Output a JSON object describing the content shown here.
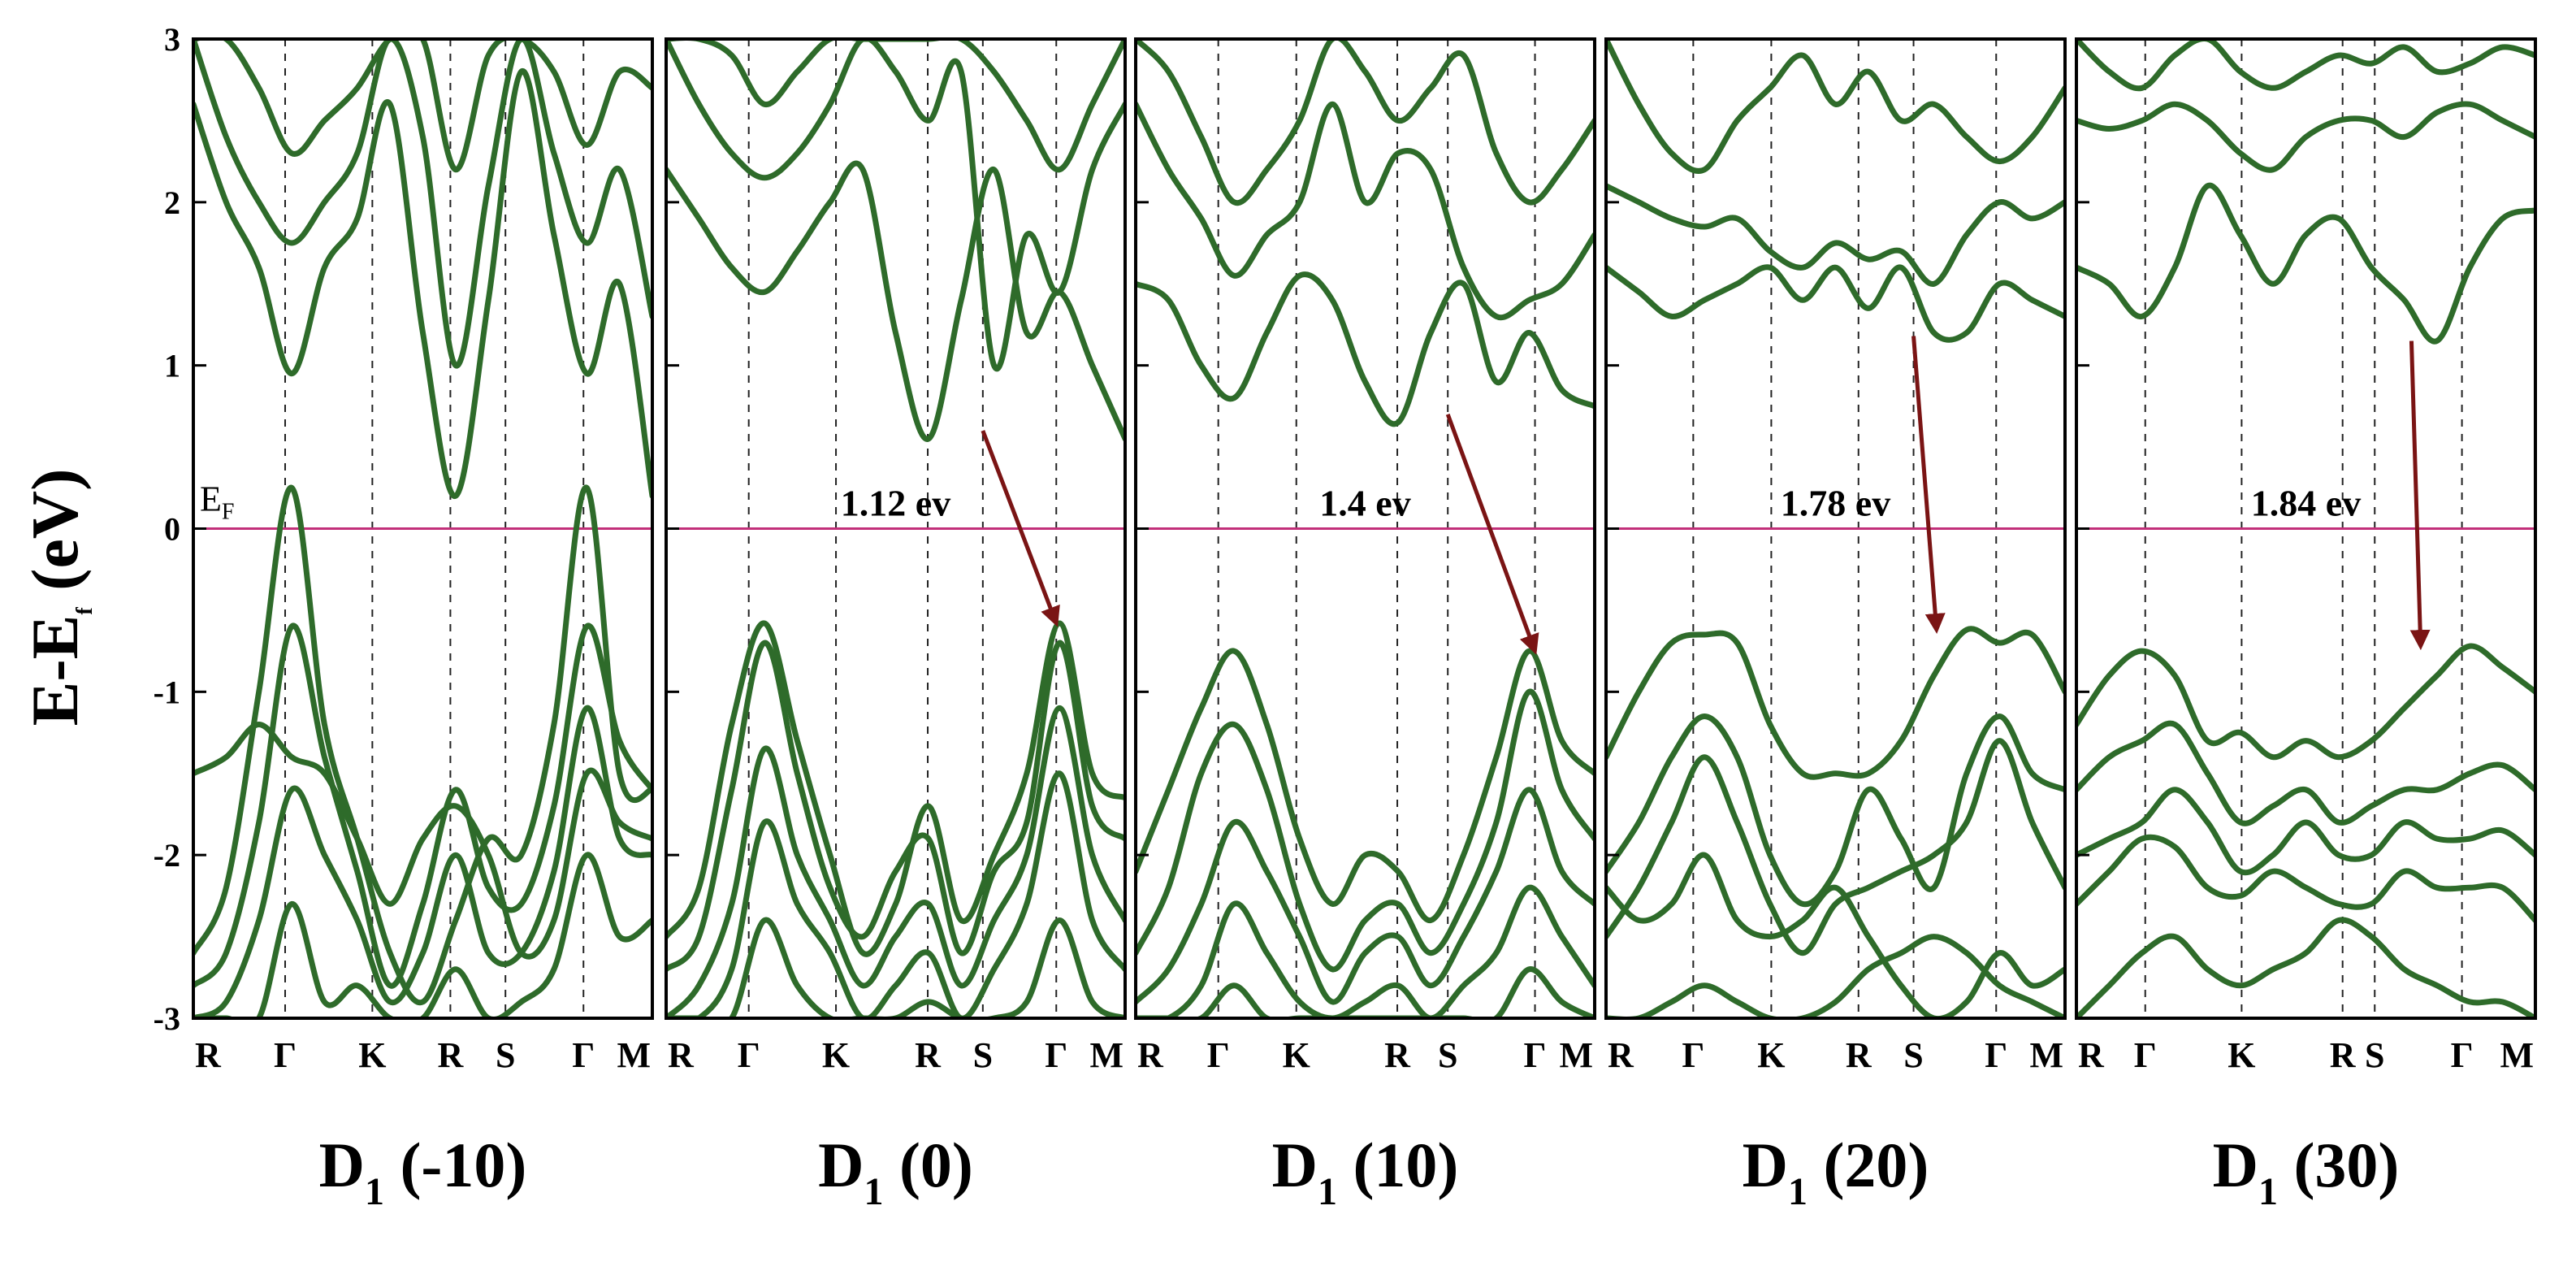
{
  "figure": {
    "ylabel_main": "E-E",
    "ylabel_sub": "f",
    "ylabel_unit": " (eV)",
    "fermi_label_main": "E",
    "fermi_label_sub": "F",
    "colors": {
      "band": "#2e6b2a",
      "fermi": "#c2307a",
      "arrow": "#7a1414",
      "kpath": "#222222",
      "frame": "#000000"
    }
  },
  "chart_data": {
    "type": "line",
    "ylim": [
      -3,
      3
    ],
    "yticks": [
      -3,
      -2,
      -1,
      0,
      1,
      2,
      3
    ],
    "panels": [
      {
        "title_main": "D",
        "title_sub": "1",
        "title_rest": " (-10)",
        "klabels": [
          "R",
          "Γ",
          "K",
          "R",
          "S",
          "Γ",
          "M"
        ],
        "kpos": [
          0,
          0.2,
          0.39,
          0.56,
          0.68,
          0.85,
          1.0
        ],
        "gap_label": "",
        "arrow": null,
        "bands": [
          [
            -2.6,
            -2.2,
            -1.0,
            0.25,
            -1.2,
            -1.9,
            -2.6,
            -2.9,
            -2.4,
            -1.9,
            -2.0,
            -1.2,
            0.25,
            -1.5,
            -1.6
          ],
          [
            -2.8,
            -2.6,
            -1.8,
            -0.6,
            -1.4,
            -2.1,
            -2.8,
            -2.3,
            -1.6,
            -2.2,
            -2.3,
            -1.7,
            -0.6,
            -1.3,
            -1.6
          ],
          [
            -3.0,
            -2.9,
            -2.4,
            -1.6,
            -2.0,
            -2.4,
            -2.9,
            -2.6,
            -2.0,
            -2.6,
            -2.6,
            -2.1,
            -1.1,
            -1.9,
            -2.0
          ],
          [
            -3.0,
            -3.0,
            -3.0,
            -2.3,
            -2.9,
            -2.8,
            -3.0,
            -3.0,
            -2.7,
            -3.0,
            -2.9,
            -2.7,
            -2.0,
            -2.5,
            -2.4
          ],
          [
            -1.5,
            -1.4,
            -1.2,
            -1.4,
            -1.5,
            -1.9,
            -2.3,
            -1.9,
            -1.7,
            -2.0,
            -2.6,
            -2.4,
            -1.5,
            -1.8,
            -1.9
          ],
          [
            2.6,
            2.0,
            1.6,
            0.95,
            1.6,
            1.9,
            2.6,
            1.2,
            0.2,
            1.4,
            2.8,
            1.8,
            0.95,
            1.5,
            0.2
          ],
          [
            3.0,
            2.4,
            2.0,
            1.75,
            2.0,
            2.3,
            3.0,
            2.4,
            1.0,
            2.1,
            3.0,
            2.3,
            1.75,
            2.2,
            1.3
          ],
          [
            3.0,
            3.0,
            2.7,
            2.3,
            2.5,
            2.7,
            3.0,
            3.0,
            2.2,
            2.9,
            3.0,
            2.8,
            2.35,
            2.8,
            2.7
          ]
        ]
      },
      {
        "title_main": "D",
        "title_sub": "1",
        "title_rest": " (0)",
        "klabels": [
          "R",
          "Γ",
          "K",
          "R",
          "S",
          "Γ",
          "M"
        ],
        "kpos": [
          0,
          0.18,
          0.37,
          0.57,
          0.69,
          0.85,
          1.0
        ],
        "gap_label": "1.12 ev",
        "arrow": {
          "from": [
            0.69,
            0.6
          ],
          "to": [
            0.85,
            -0.58
          ]
        },
        "bands": [
          [
            -2.5,
            -2.2,
            -1.2,
            -0.58,
            -1.3,
            -2.0,
            -2.6,
            -2.3,
            -1.7,
            -2.4,
            -2.0,
            -1.5,
            -0.58,
            -1.5,
            -1.65
          ],
          [
            -2.7,
            -2.5,
            -1.6,
            -0.7,
            -1.5,
            -2.2,
            -2.5,
            -2.1,
            -1.9,
            -2.6,
            -2.1,
            -1.8,
            -0.7,
            -1.7,
            -1.9
          ],
          [
            -3.0,
            -2.8,
            -2.3,
            -1.35,
            -2.0,
            -2.4,
            -2.8,
            -2.5,
            -2.3,
            -2.8,
            -2.4,
            -2.0,
            -1.1,
            -2.0,
            -2.4
          ],
          [
            -3.0,
            -3.0,
            -2.7,
            -1.8,
            -2.3,
            -2.6,
            -3.0,
            -2.8,
            -2.6,
            -3.0,
            -2.7,
            -2.3,
            -1.5,
            -2.4,
            -2.7
          ],
          [
            -3.0,
            -3.0,
            -3.0,
            -2.4,
            -2.8,
            -3.0,
            -3.0,
            -3.0,
            -2.9,
            -3.0,
            -3.0,
            -2.9,
            -2.4,
            -2.9,
            -3.0
          ],
          [
            2.2,
            1.9,
            1.6,
            1.45,
            1.7,
            2.0,
            2.2,
            1.2,
            0.55,
            1.4,
            2.2,
            1.2,
            1.45,
            1.0,
            0.55
          ],
          [
            3.0,
            2.6,
            2.3,
            2.15,
            2.3,
            2.6,
            3.0,
            2.8,
            2.5,
            2.8,
            1.0,
            1.8,
            1.45,
            2.2,
            2.6
          ],
          [
            3.0,
            3.0,
            2.9,
            2.6,
            2.8,
            3.0,
            3.0,
            3.0,
            3.0,
            3.0,
            2.8,
            2.5,
            2.2,
            2.6,
            3.0
          ]
        ]
      },
      {
        "title_main": "D",
        "title_sub": "1",
        "title_rest": " (10)",
        "klabels": [
          "R",
          "Γ",
          "K",
          "R",
          "S",
          "Γ",
          "M"
        ],
        "kpos": [
          0,
          0.18,
          0.35,
          0.57,
          0.68,
          0.87,
          1.0
        ],
        "gap_label": "1.4 ev",
        "arrow": {
          "from": [
            0.68,
            0.7
          ],
          "to": [
            0.87,
            -0.75
          ]
        },
        "bands": [
          [
            -2.1,
            -1.6,
            -1.1,
            -0.75,
            -1.2,
            -1.9,
            -2.3,
            -2.0,
            -2.1,
            -2.4,
            -2.0,
            -1.4,
            -0.75,
            -1.3,
            -1.5
          ],
          [
            -2.6,
            -2.2,
            -1.5,
            -1.2,
            -1.6,
            -2.3,
            -2.7,
            -2.4,
            -2.3,
            -2.6,
            -2.3,
            -1.8,
            -1.0,
            -1.6,
            -1.9
          ],
          [
            -2.9,
            -2.7,
            -2.3,
            -1.8,
            -2.1,
            -2.5,
            -2.9,
            -2.6,
            -2.5,
            -2.8,
            -2.5,
            -2.1,
            -1.6,
            -2.1,
            -2.3
          ],
          [
            -3.0,
            -3.0,
            -2.8,
            -2.3,
            -2.6,
            -2.9,
            -3.0,
            -2.9,
            -2.8,
            -3.0,
            -2.8,
            -2.6,
            -2.2,
            -2.5,
            -2.8
          ],
          [
            -3.0,
            -3.0,
            -3.0,
            -2.8,
            -3.0,
            -3.0,
            -3.0,
            -3.0,
            -3.0,
            -3.0,
            -3.0,
            -3.0,
            -2.7,
            -2.9,
            -3.0
          ],
          [
            1.5,
            1.4,
            1.0,
            0.8,
            1.2,
            1.55,
            1.4,
            0.9,
            0.65,
            1.2,
            1.5,
            0.9,
            1.2,
            0.85,
            0.75
          ],
          [
            2.6,
            2.2,
            1.9,
            1.55,
            1.8,
            2.0,
            2.6,
            2.0,
            2.3,
            2.2,
            1.6,
            1.3,
            1.4,
            1.5,
            1.8
          ],
          [
            3.0,
            2.8,
            2.4,
            2.0,
            2.2,
            2.5,
            3.0,
            2.8,
            2.5,
            2.7,
            2.9,
            2.3,
            2.0,
            2.2,
            2.5
          ]
        ]
      },
      {
        "title_main": "D",
        "title_sub": "1",
        "title_rest": " (20)",
        "klabels": [
          "R",
          "Γ",
          "K",
          "R",
          "S",
          "Γ",
          "M"
        ],
        "kpos": [
          0,
          0.19,
          0.36,
          0.55,
          0.67,
          0.85,
          1.0
        ],
        "gap_label": "1.78 ev",
        "arrow": {
          "from": [
            0.67,
            1.18
          ],
          "to": [
            0.72,
            -0.62
          ]
        },
        "bands": [
          [
            -1.4,
            -1.0,
            -0.7,
            -0.65,
            -0.7,
            -1.2,
            -1.5,
            -1.5,
            -1.5,
            -1.3,
            -0.9,
            -0.62,
            -0.7,
            -0.65,
            -1.0
          ],
          [
            -2.1,
            -1.8,
            -1.4,
            -1.15,
            -1.4,
            -2.0,
            -2.3,
            -2.1,
            -1.6,
            -1.9,
            -2.2,
            -1.5,
            -1.15,
            -1.5,
            -1.6
          ],
          [
            -2.5,
            -2.2,
            -1.8,
            -1.4,
            -1.8,
            -2.3,
            -2.6,
            -2.3,
            -2.2,
            -2.1,
            -2.0,
            -1.8,
            -1.3,
            -1.8,
            -2.2
          ],
          [
            -2.2,
            -2.4,
            -2.3,
            -2.0,
            -2.4,
            -2.5,
            -2.4,
            -2.2,
            -2.5,
            -2.8,
            -3.0,
            -2.9,
            -2.6,
            -2.8,
            -2.7
          ],
          [
            -3.0,
            -3.0,
            -2.9,
            -2.8,
            -2.9,
            -3.0,
            -3.0,
            -2.9,
            -2.7,
            -2.6,
            -2.5,
            -2.6,
            -2.8,
            -2.9,
            -3.0
          ],
          [
            1.6,
            1.45,
            1.3,
            1.4,
            1.5,
            1.6,
            1.4,
            1.6,
            1.35,
            1.6,
            1.2,
            1.2,
            1.5,
            1.4,
            1.3
          ],
          [
            2.1,
            2.0,
            1.9,
            1.85,
            1.9,
            1.7,
            1.6,
            1.75,
            1.65,
            1.7,
            1.5,
            1.8,
            2.0,
            1.9,
            2.0
          ],
          [
            3.0,
            2.6,
            2.3,
            2.2,
            2.5,
            2.7,
            2.9,
            2.6,
            2.8,
            2.5,
            2.6,
            2.4,
            2.25,
            2.4,
            2.7
          ]
        ]
      },
      {
        "title_main": "D",
        "title_sub": "1",
        "title_rest": " (30)",
        "klabels": [
          "R",
          "Γ",
          "K",
          "R",
          "S",
          "Γ",
          "M"
        ],
        "kpos": [
          0,
          0.15,
          0.36,
          0.58,
          0.65,
          0.84,
          1.0
        ],
        "gap_label": "1.84 ev",
        "arrow": {
          "from": [
            0.73,
            1.15
          ],
          "to": [
            0.75,
            -0.72
          ]
        },
        "bands": [
          [
            -1.2,
            -0.9,
            -0.75,
            -0.9,
            -1.3,
            -1.25,
            -1.4,
            -1.3,
            -1.4,
            -1.3,
            -1.1,
            -0.9,
            -0.72,
            -0.85,
            -1.0
          ],
          [
            -1.6,
            -1.4,
            -1.3,
            -1.2,
            -1.5,
            -1.8,
            -1.7,
            -1.6,
            -1.8,
            -1.7,
            -1.6,
            -1.6,
            -1.5,
            -1.45,
            -1.6
          ],
          [
            -2.0,
            -1.9,
            -1.8,
            -1.6,
            -1.8,
            -2.1,
            -2.0,
            -1.8,
            -2.0,
            -2.0,
            -1.8,
            -1.9,
            -1.9,
            -1.85,
            -2.0
          ],
          [
            -2.3,
            -2.1,
            -1.9,
            -1.95,
            -2.2,
            -2.25,
            -2.1,
            -2.2,
            -2.3,
            -2.3,
            -2.1,
            -2.2,
            -2.2,
            -2.2,
            -2.4
          ],
          [
            -3.0,
            -2.8,
            -2.6,
            -2.5,
            -2.7,
            -2.8,
            -2.7,
            -2.6,
            -2.4,
            -2.5,
            -2.7,
            -2.8,
            -2.9,
            -2.9,
            -3.0
          ],
          [
            1.6,
            1.5,
            1.3,
            1.6,
            2.1,
            1.8,
            1.5,
            1.8,
            1.9,
            1.6,
            1.4,
            1.15,
            1.6,
            1.9,
            1.95
          ],
          [
            2.5,
            2.45,
            2.5,
            2.6,
            2.5,
            2.3,
            2.2,
            2.4,
            2.5,
            2.5,
            2.4,
            2.55,
            2.6,
            2.5,
            2.4
          ],
          [
            3.0,
            2.8,
            2.7,
            2.9,
            3.0,
            2.8,
            2.7,
            2.8,
            2.9,
            2.85,
            2.95,
            2.8,
            2.85,
            2.95,
            2.9
          ]
        ]
      }
    ]
  }
}
